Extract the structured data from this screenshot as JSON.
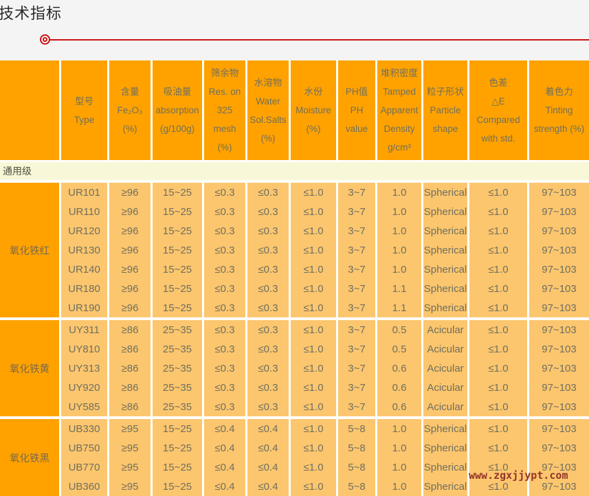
{
  "page": {
    "title": "技术指标",
    "watermark": "www.zgxjjypt.com"
  },
  "colors": {
    "header_orange": "#ffa200",
    "cell_orange": "#fcc66e",
    "band_yellow": "#f8f8d8",
    "accent_red": "#cc1212",
    "watermark_red": "#943528",
    "cell_text": "#6f6f5f"
  },
  "table": {
    "headers": [
      {
        "lines": []
      },
      {
        "lines": [
          "型号",
          "Type"
        ]
      },
      {
        "lines": [
          "含量",
          "Fe₂O₃",
          "(%)"
        ]
      },
      {
        "lines": [
          "吸油量",
          "absorption",
          "(g/100g)"
        ]
      },
      {
        "lines": [
          "筛余物",
          "Res. on",
          "325",
          "mesh",
          "(%)"
        ]
      },
      {
        "lines": [
          "水溶物",
          "Water",
          "Sol.Salts",
          "(%)"
        ]
      },
      {
        "lines": [
          "水份",
          "Moisture",
          "(%)"
        ]
      },
      {
        "lines": [
          "PH值",
          "PH",
          "value"
        ]
      },
      {
        "lines": [
          "堆积密度",
          "Tamped",
          "Apparent",
          "Density",
          "g/cm³"
        ]
      },
      {
        "lines": [
          "粒子形状",
          "Particle",
          "shape"
        ]
      },
      {
        "lines": [
          "色差",
          "△E",
          "Compared",
          "with std."
        ]
      },
      {
        "lines": [
          "着色力",
          "Tinting",
          "strength (%)"
        ]
      }
    ],
    "band": "通用级",
    "groups": [
      {
        "label": "氧化铁红",
        "rows": [
          [
            "UR101",
            "≥96",
            "15~25",
            "≤0.3",
            "≤0.3",
            "≤1.0",
            "3~7",
            "1.0",
            "Spherical",
            "≤1.0",
            "97~103"
          ],
          [
            "UR110",
            "≥96",
            "15~25",
            "≤0.3",
            "≤0.3",
            "≤1.0",
            "3~7",
            "1.0",
            "Spherical",
            "≤1.0",
            "97~103"
          ],
          [
            "UR120",
            "≥96",
            "15~25",
            "≤0.3",
            "≤0.3",
            "≤1.0",
            "3~7",
            "1.0",
            "Spherical",
            "≤1.0",
            "97~103"
          ],
          [
            "UR130",
            "≥96",
            "15~25",
            "≤0.3",
            "≤0.3",
            "≤1.0",
            "3~7",
            "1.0",
            "Spherical",
            "≤1.0",
            "97~103"
          ],
          [
            "UR140",
            "≥96",
            "15~25",
            "≤0.3",
            "≤0.3",
            "≤1.0",
            "3~7",
            "1.0",
            "Spherical",
            "≤1.0",
            "97~103"
          ],
          [
            "UR180",
            "≥96",
            "15~25",
            "≤0.3",
            "≤0.3",
            "≤1.0",
            "3~7",
            "1.1",
            "Spherical",
            "≤1.0",
            "97~103"
          ],
          [
            "UR190",
            "≥96",
            "15~25",
            "≤0.3",
            "≤0.3",
            "≤1.0",
            "3~7",
            "1.1",
            "Spherical",
            "≤1.0",
            "97~103"
          ]
        ]
      },
      {
        "label": "氧化铁黄",
        "rows": [
          [
            "UY311",
            "≥86",
            "25~35",
            "≤0.3",
            "≤0.3",
            "≤1.0",
            "3~7",
            "0.5",
            "Acicular",
            "≤1.0",
            "97~103"
          ],
          [
            "UY810",
            "≥86",
            "25~35",
            "≤0.3",
            "≤0.3",
            "≤1.0",
            "3~7",
            "0.5",
            "Acicular",
            "≤1.0",
            "97~103"
          ],
          [
            "UY313",
            "≥86",
            "25~35",
            "≤0.3",
            "≤0.3",
            "≤1.0",
            "3~7",
            "0.6",
            "Acicular",
            "≤1.0",
            "97~103"
          ],
          [
            "UY920",
            "≥86",
            "25~35",
            "≤0.3",
            "≤0.3",
            "≤1.0",
            "3~7",
            "0.6",
            "Acicular",
            "≤1.0",
            "97~103"
          ],
          [
            "UY585",
            "≥86",
            "25~35",
            "≤0.3",
            "≤0.3",
            "≤1.0",
            "3~7",
            "0.6",
            "Acicular",
            "≤1.0",
            "97~103"
          ]
        ]
      },
      {
        "label": "氧化铁黑",
        "rows": [
          [
            "UB330",
            "≥95",
            "15~25",
            "≤0.4",
            "≤0.4",
            "≤1.0",
            "5~8",
            "1.0",
            "Spherical",
            "≤1.0",
            "97~103"
          ],
          [
            "UB750",
            "≥95",
            "15~25",
            "≤0.4",
            "≤0.4",
            "≤1.0",
            "5~8",
            "1.0",
            "Spherical",
            "≤1.0",
            "97~103"
          ],
          [
            "UB770",
            "≥95",
            "15~25",
            "≤0.4",
            "≤0.4",
            "≤1.0",
            "5~8",
            "1.0",
            "Spherical",
            "≤1.0",
            "97~103"
          ],
          [
            "UB360",
            "≥95",
            "15~25",
            "≤0.4",
            "≤0.4",
            "≤1.0",
            "5~8",
            "1.0",
            "Spherical",
            "≤1.0",
            "97~103"
          ]
        ]
      }
    ]
  }
}
